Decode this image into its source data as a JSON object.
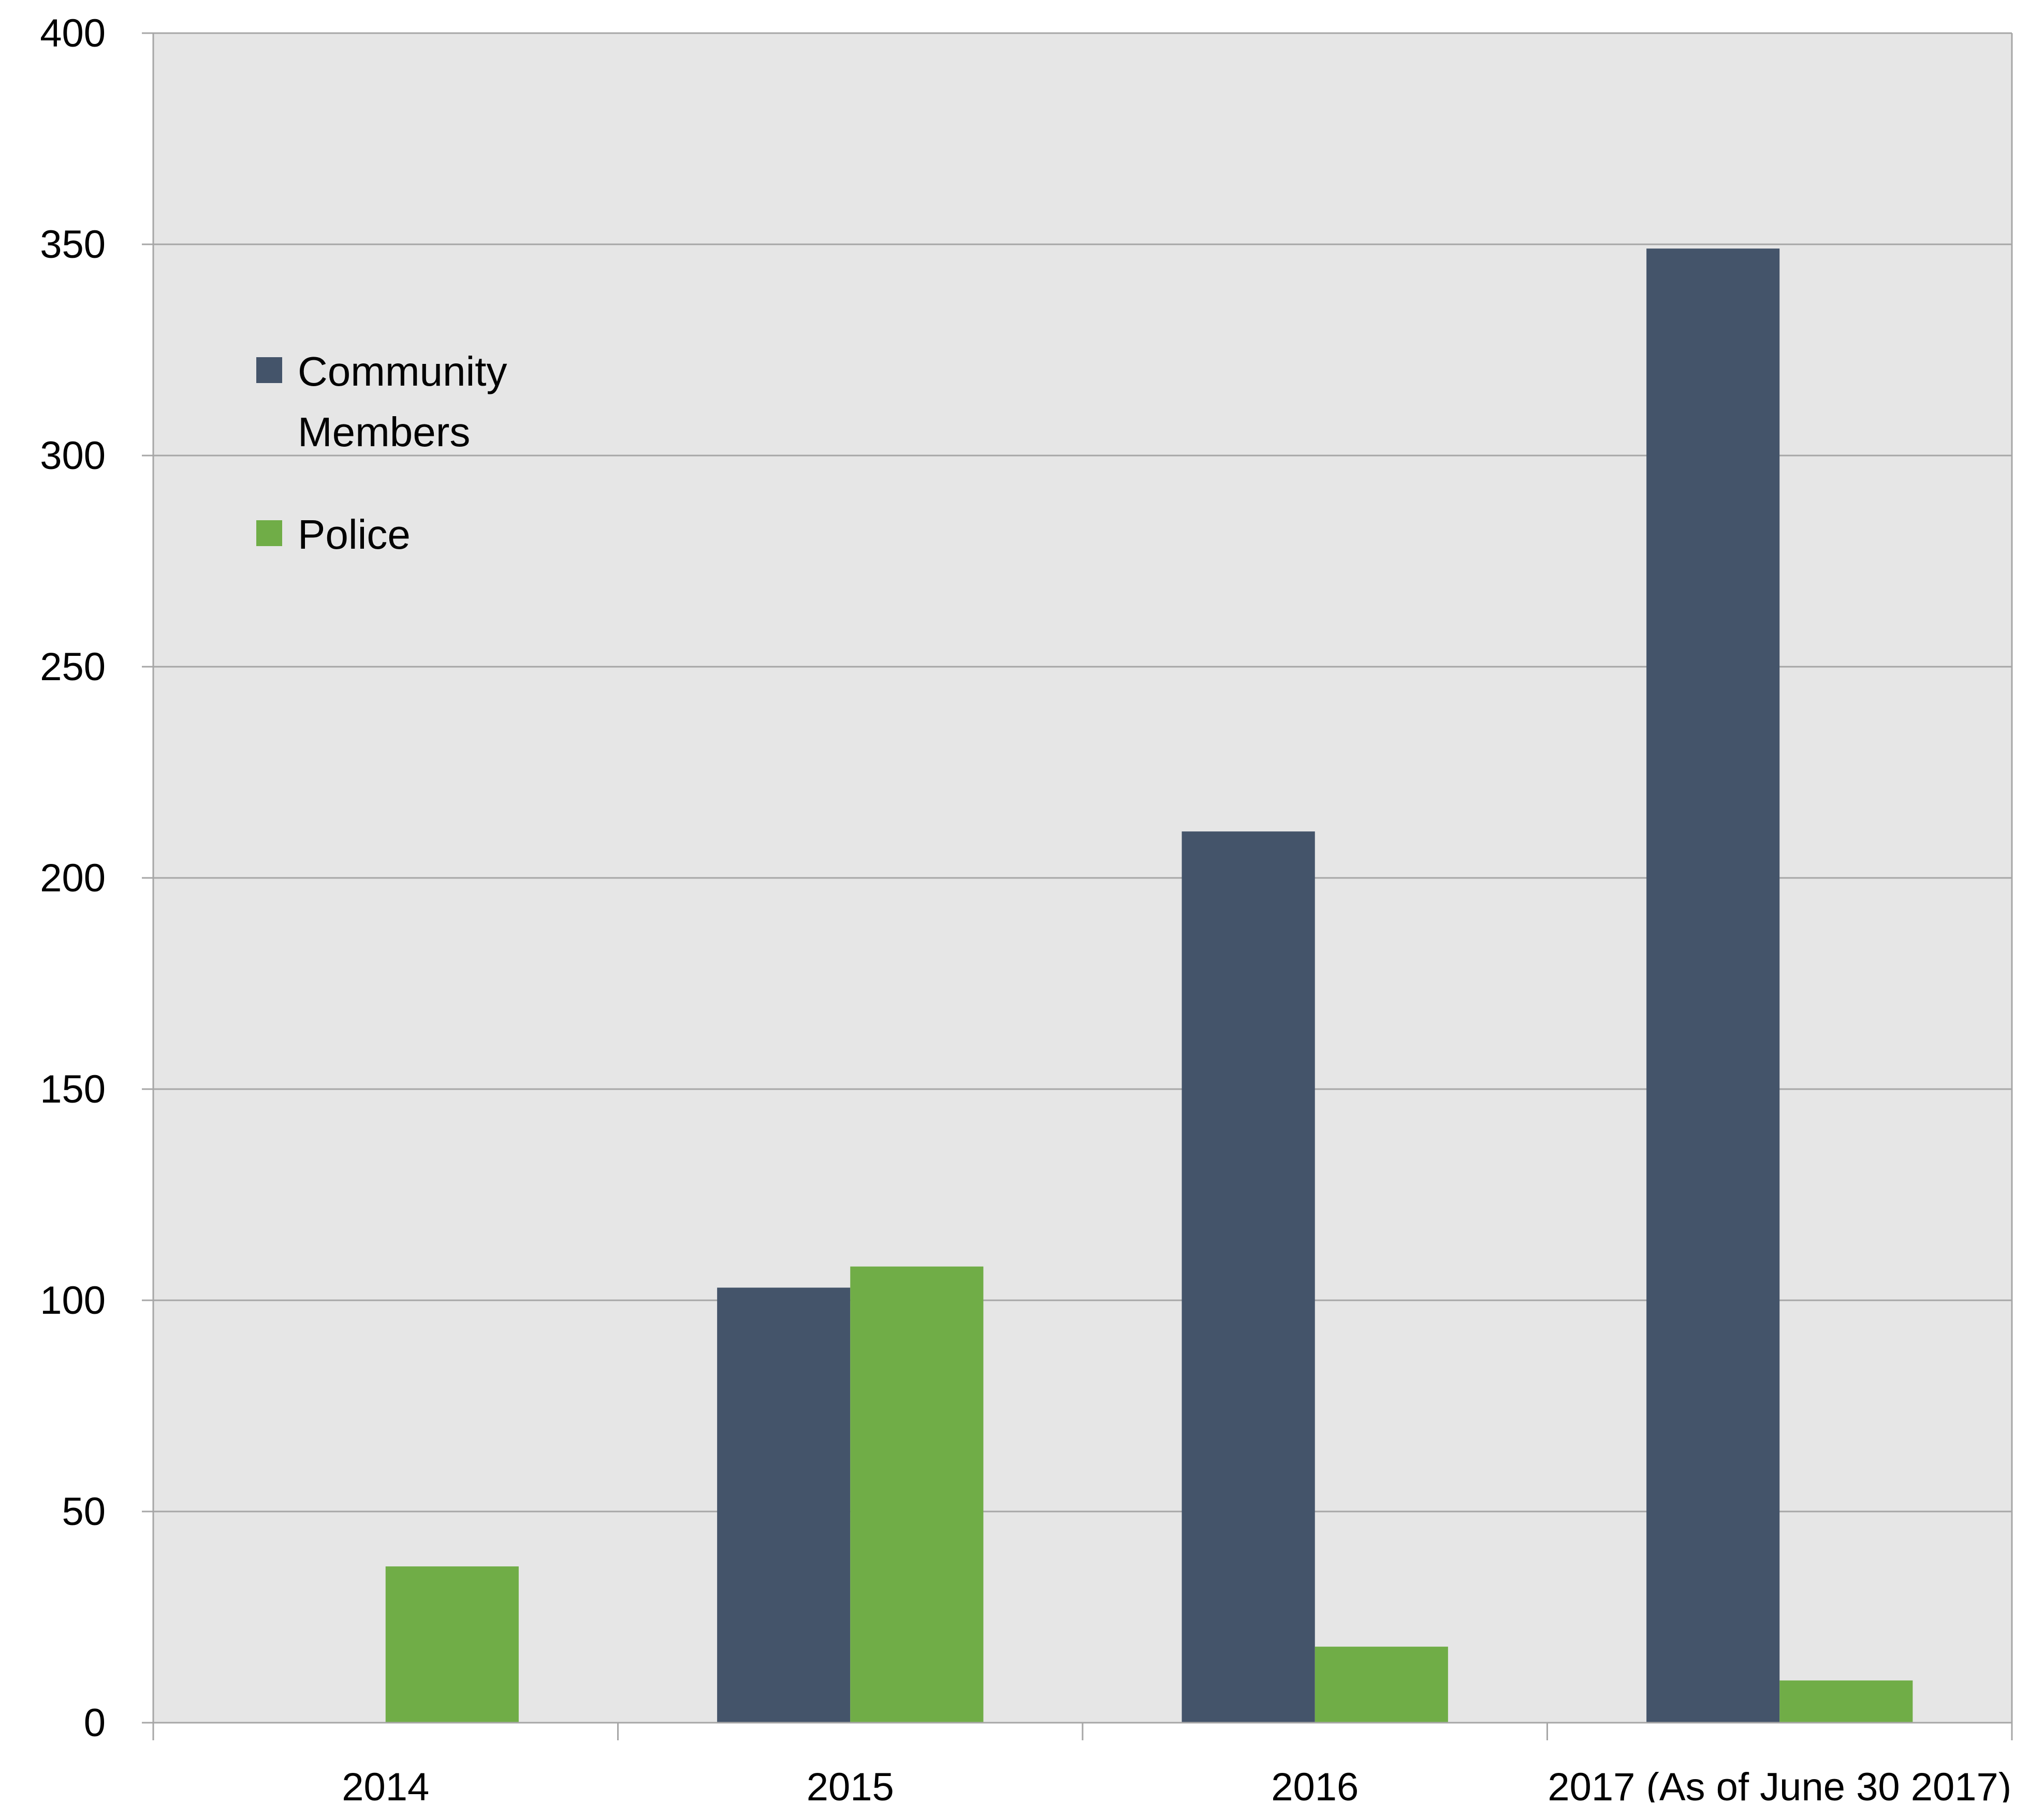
{
  "chart_data": {
    "type": "bar",
    "title": "",
    "xlabel": "",
    "ylabel": "",
    "categories": [
      "2014",
      "2015",
      "2016",
      "2017 (As of June 30 2017)"
    ],
    "series": [
      {
        "name": "Community Members",
        "color": "#44546a",
        "values": [
          0,
          103,
          211,
          349
        ]
      },
      {
        "name": "Police",
        "color": "#70ad47",
        "values": [
          37,
          108,
          18,
          10
        ]
      }
    ],
    "ylim": [
      0,
      400
    ],
    "yticks": [
      0,
      50,
      100,
      150,
      200,
      250,
      300,
      350,
      400
    ],
    "grid": true,
    "legend_position": "top-left inside plot",
    "colors": {
      "plot_background": "#e6e6e6",
      "gridline": "#a6a6a6"
    }
  },
  "legend": {
    "items": [
      {
        "lines": [
          "Community",
          "Members"
        ]
      },
      {
        "lines": [
          "Police"
        ]
      }
    ]
  }
}
